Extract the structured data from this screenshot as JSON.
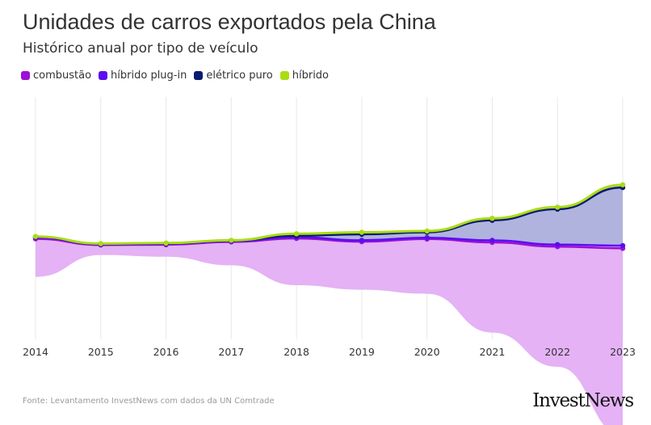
{
  "header": {
    "title": "Unidades de carros exportados pela China",
    "subtitle": "Histórico anual por tipo de veículo"
  },
  "footer": {
    "source": "Fonte: Levantamento InvestNews com dados da UN Comtrade",
    "logo_text": "InvestNews"
  },
  "colors": {
    "combustao": "#9b10d6",
    "hibrido_plug_in": "#5b0df0",
    "eletrico_puro": "#0a1a6e",
    "hibrido": "#aadc14",
    "area_combustao": "#e4b2f5",
    "area_eletrico": "#b0b3de",
    "area_hibrido": "#b8bfc4",
    "grid": "#e8e8e8",
    "axis_text": "#333333"
  },
  "chart_data": {
    "type": "area",
    "stacked": true,
    "stack_offset": "wiggle",
    "x": [
      "2014",
      "2015",
      "2016",
      "2017",
      "2018",
      "2019",
      "2020",
      "2021",
      "2022",
      "2023"
    ],
    "series": [
      {
        "name": "combustão",
        "values": [
          57,
          15,
          18,
          35,
          70,
          72,
          82,
          135,
          180,
          280
        ]
      },
      {
        "name": "híbrido plug-in",
        "values": [
          2,
          1,
          1,
          1,
          2,
          2,
          2,
          3,
          3,
          4
        ]
      },
      {
        "name": "elétrico puro",
        "values": [
          1,
          0.5,
          1,
          1,
          2,
          9,
          8,
          30,
          53,
          87
        ]
      },
      {
        "name": "híbrido",
        "values": [
          0.5,
          0.5,
          0.5,
          0.5,
          3,
          3,
          2,
          3,
          3,
          4
        ]
      }
    ],
    "legend_position": "top-left",
    "grid": {
      "x": true,
      "y": false
    },
    "y_axis_visible": false
  }
}
